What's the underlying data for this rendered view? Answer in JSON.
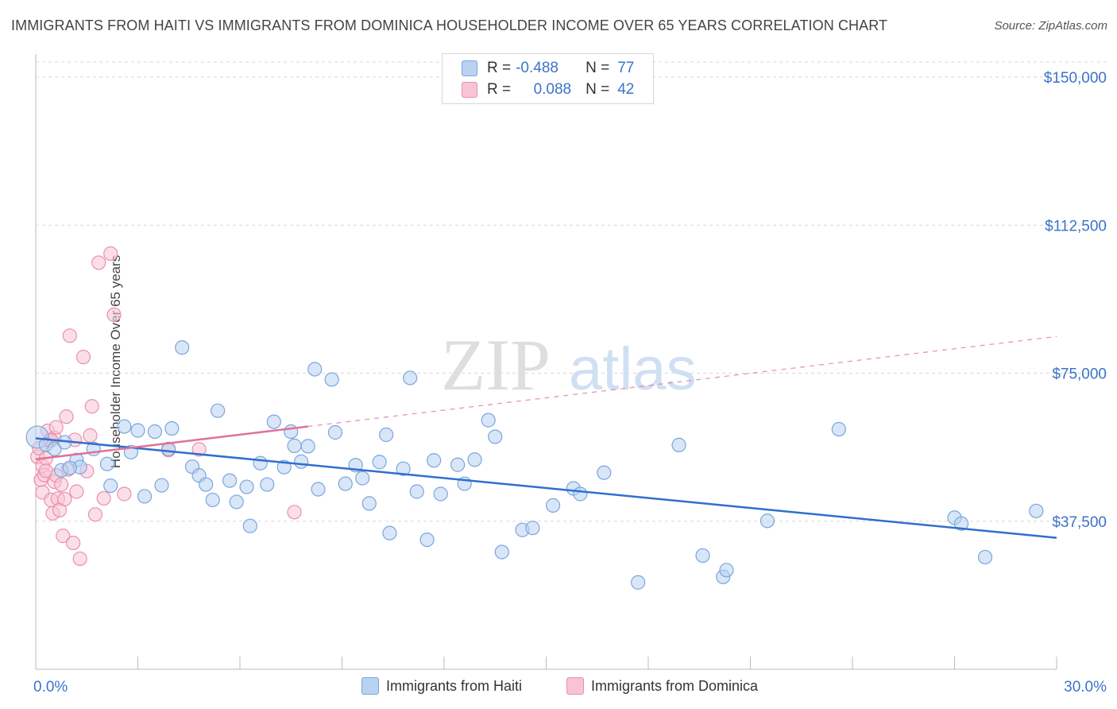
{
  "title": "IMMIGRANTS FROM HAITI VS IMMIGRANTS FROM DOMINICA HOUSEHOLDER INCOME OVER 65 YEARS CORRELATION CHART",
  "source": "Source: ZipAtlas.com",
  "watermark": {
    "zip": "ZIP",
    "atlas": "atlas"
  },
  "legend_top": {
    "rows": [
      {
        "r_label": "R =",
        "r_value": "-0.488",
        "n_label": "N =",
        "n_value": "77"
      },
      {
        "r_label": "R =",
        "r_value": "0.088",
        "n_label": "N =",
        "n_value": "42"
      }
    ]
  },
  "legend_bottom": {
    "haiti": "Immigrants from Haiti",
    "dominica": "Immigrants from Dominica"
  },
  "colors": {
    "haiti_fill": "#b8d2f2",
    "haiti_stroke": "#7aa6dd",
    "haiti_line": "#2f6fcf",
    "dominica_fill": "#f8c4d4",
    "dominica_stroke": "#eb8fad",
    "dominica_line": "#e0709a",
    "value_text": "#3a74c8",
    "grid": "#d9d9d9"
  },
  "chart_data": {
    "type": "scatter",
    "ylabel": "Householder Income Over 65 years",
    "xlabel": "",
    "xlim": [
      0,
      30
    ],
    "ylim": [
      0,
      150000
    ],
    "x_tick_labels": [
      "0.0%",
      "30.0%"
    ],
    "y_ticks": [
      37500,
      75000,
      112500,
      150000
    ],
    "y_tick_labels": [
      "$37,500",
      "$75,000",
      "$112,500",
      "$150,000"
    ],
    "grid": true,
    "legend_position": "bottom",
    "series": [
      {
        "name": "Immigrants from Haiti",
        "r": -0.488,
        "n": 77,
        "trend": {
          "x": [
            0,
            30
          ],
          "y": [
            58500,
            33300
          ],
          "style": "solid"
        },
        "points": [
          [
            0.05,
            58800
          ],
          [
            0.3,
            56900
          ],
          [
            0.55,
            55800
          ],
          [
            0.75,
            50400
          ],
          [
            0.85,
            57500
          ],
          [
            1.2,
            53000
          ],
          [
            1.3,
            51200
          ],
          [
            1.7,
            55800
          ],
          [
            2.1,
            52000
          ],
          [
            2.2,
            46500
          ],
          [
            2.6,
            61500
          ],
          [
            2.8,
            55000
          ],
          [
            3.0,
            60500
          ],
          [
            3.2,
            43800
          ],
          [
            3.5,
            60200
          ],
          [
            3.7,
            46600
          ],
          [
            3.9,
            55800
          ],
          [
            4.0,
            61000
          ],
          [
            4.3,
            81500
          ],
          [
            4.6,
            51300
          ],
          [
            4.8,
            49100
          ],
          [
            5.0,
            46800
          ],
          [
            5.2,
            42900
          ],
          [
            5.35,
            65500
          ],
          [
            5.7,
            47800
          ],
          [
            5.9,
            42400
          ],
          [
            6.2,
            46200
          ],
          [
            6.3,
            36300
          ],
          [
            6.6,
            52200
          ],
          [
            6.8,
            46800
          ],
          [
            7.0,
            62700
          ],
          [
            7.3,
            51200
          ],
          [
            7.5,
            60200
          ],
          [
            7.6,
            56600
          ],
          [
            7.8,
            52600
          ],
          [
            8.0,
            56500
          ],
          [
            8.2,
            76000
          ],
          [
            8.3,
            45600
          ],
          [
            8.7,
            73400
          ],
          [
            8.8,
            60000
          ],
          [
            9.1,
            47000
          ],
          [
            9.4,
            51700
          ],
          [
            9.6,
            48400
          ],
          [
            9.8,
            42000
          ],
          [
            10.1,
            52500
          ],
          [
            10.3,
            59400
          ],
          [
            10.4,
            34500
          ],
          [
            10.8,
            50800
          ],
          [
            11.0,
            73800
          ],
          [
            11.2,
            45000
          ],
          [
            11.5,
            32800
          ],
          [
            11.7,
            52900
          ],
          [
            11.9,
            44400
          ],
          [
            12.4,
            51800
          ],
          [
            12.6,
            47000
          ],
          [
            12.9,
            53100
          ],
          [
            13.3,
            63100
          ],
          [
            13.5,
            58900
          ],
          [
            13.7,
            29700
          ],
          [
            14.3,
            35300
          ],
          [
            14.6,
            35800
          ],
          [
            15.2,
            41500
          ],
          [
            15.8,
            45800
          ],
          [
            16.0,
            44400
          ],
          [
            16.7,
            49800
          ],
          [
            17.7,
            22000
          ],
          [
            18.9,
            56800
          ],
          [
            19.6,
            28800
          ],
          [
            20.2,
            23400
          ],
          [
            20.3,
            25100
          ],
          [
            21.5,
            37600
          ],
          [
            23.6,
            60800
          ],
          [
            27.0,
            38400
          ],
          [
            27.2,
            36900
          ],
          [
            27.9,
            28400
          ],
          [
            29.4,
            40100
          ],
          [
            1.0,
            51000
          ]
        ]
      },
      {
        "name": "Immigrants from Dominica",
        "r": 0.088,
        "n": 42,
        "trend": {
          "x": [
            0,
            8
          ],
          "y": [
            53200,
            61500
          ],
          "style": "solid"
        },
        "trend_extension": {
          "x": [
            8,
            30
          ],
          "y": [
            61500,
            84300
          ],
          "style": "dashed"
        },
        "points": [
          [
            0.05,
            53800
          ],
          [
            0.1,
            56000
          ],
          [
            0.15,
            48000
          ],
          [
            0.2,
            51500
          ],
          [
            0.2,
            44800
          ],
          [
            0.25,
            49200
          ],
          [
            0.3,
            53400
          ],
          [
            0.35,
            60400
          ],
          [
            0.4,
            57900
          ],
          [
            0.45,
            42900
          ],
          [
            0.5,
            39500
          ],
          [
            0.55,
            47500
          ],
          [
            0.55,
            58600
          ],
          [
            0.6,
            61300
          ],
          [
            0.6,
            49100
          ],
          [
            0.65,
            43200
          ],
          [
            0.7,
            40300
          ],
          [
            0.75,
            46800
          ],
          [
            0.8,
            33800
          ],
          [
            0.85,
            43100
          ],
          [
            0.9,
            64000
          ],
          [
            0.95,
            50600
          ],
          [
            1.0,
            84500
          ],
          [
            1.1,
            32000
          ],
          [
            1.15,
            58100
          ],
          [
            1.2,
            45000
          ],
          [
            1.3,
            28000
          ],
          [
            1.4,
            79100
          ],
          [
            1.5,
            50200
          ],
          [
            1.6,
            59200
          ],
          [
            1.65,
            66600
          ],
          [
            1.75,
            39200
          ],
          [
            1.85,
            103000
          ],
          [
            2.0,
            43300
          ],
          [
            2.2,
            105300
          ],
          [
            2.3,
            89800
          ],
          [
            2.6,
            44400
          ],
          [
            3.9,
            55500
          ],
          [
            4.8,
            55700
          ],
          [
            7.6,
            39800
          ],
          [
            0.3,
            50300
          ],
          [
            0.45,
            58000
          ]
        ]
      }
    ]
  }
}
